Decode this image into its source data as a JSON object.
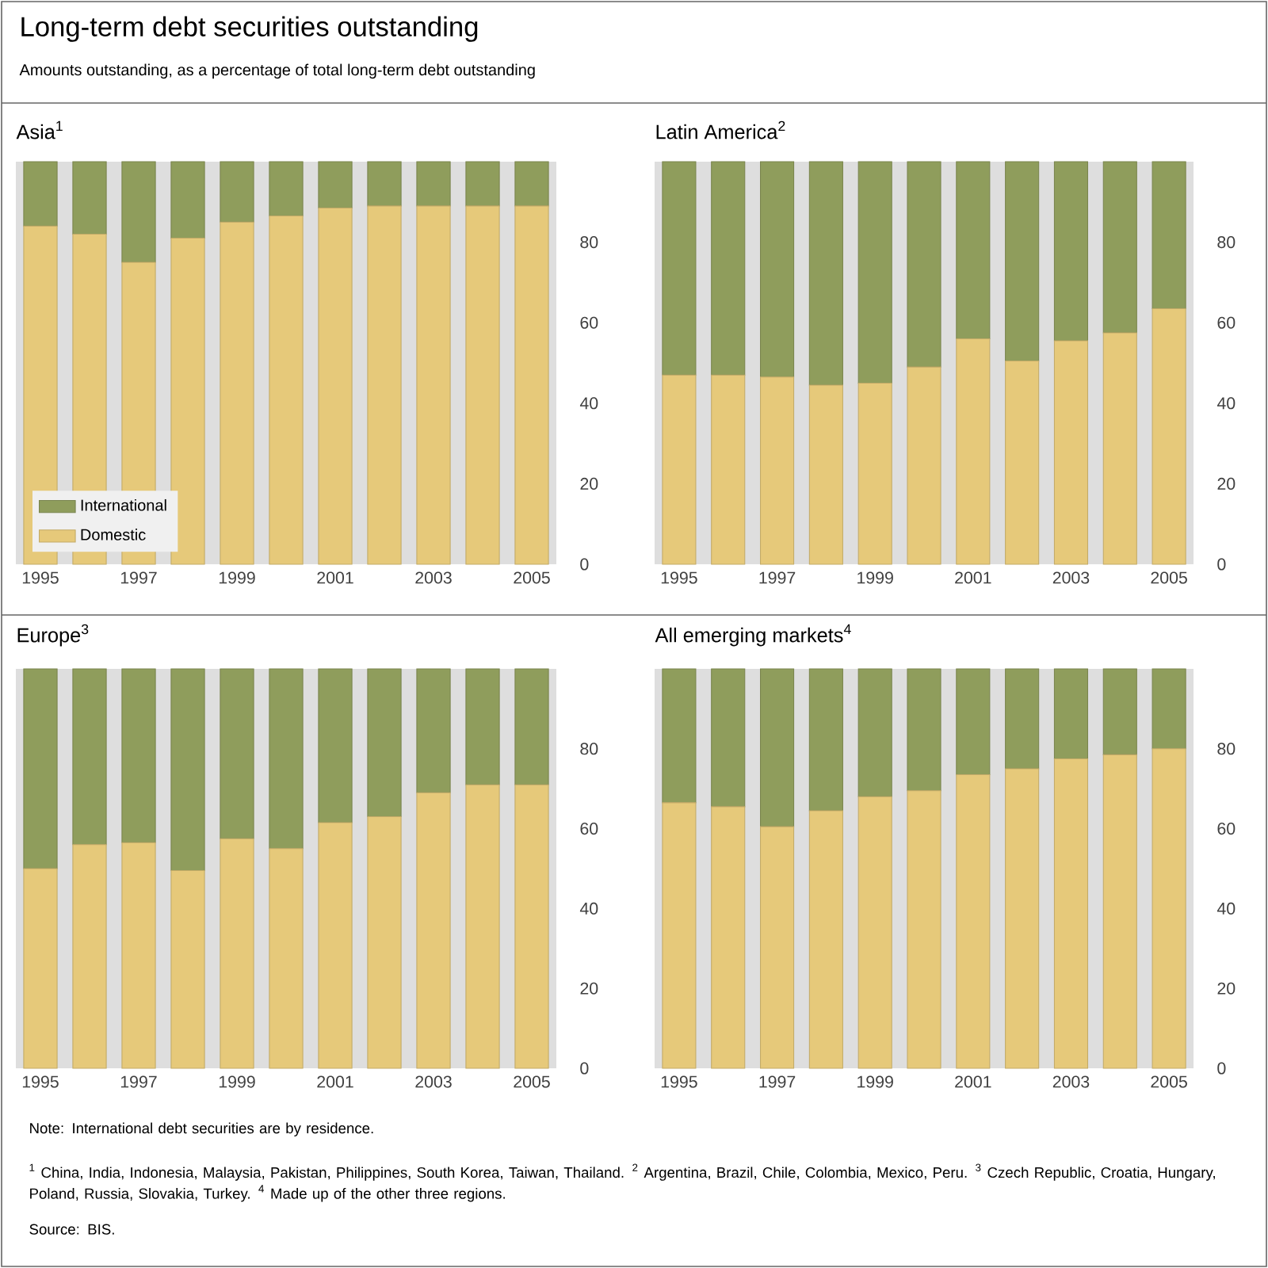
{
  "chart_data": [
    {
      "type": "other",
      "title": "Long-term debt securities outstanding",
      "subtitle": "Amounts outstanding, as a percentage of total long-term debt outstanding"
    },
    {
      "type": "bar",
      "title": "Asia$^{1}$",
      "categories": [
        "1995",
        null,
        "1997",
        null,
        "1999",
        null,
        "2001",
        null,
        "2003",
        null,
        "2005"
      ],
      "stacked": true,
      "ylim": [
        0,
        100
      ],
      "yticks": [
        0,
        20,
        40,
        60,
        80
      ],
      "legend": "bottom left",
      "series": [
        {
          "name": "Domestic",
          "color": "#e6c97a",
          "values": [
            84,
            82,
            75,
            81,
            85,
            86.5,
            88.5,
            89,
            89,
            89,
            89
          ]
        },
        {
          "name": "International",
          "color": "#8f9d5c",
          "values": [
            16,
            18,
            25,
            19,
            15,
            13.5,
            11.5,
            11,
            11,
            11,
            11
          ]
        }
      ]
    },
    {
      "type": "bar",
      "title": "Latin America$^{2}$",
      "categories": [
        "1995",
        null,
        "1997",
        null,
        "1999",
        null,
        "2001",
        null,
        "2003",
        null,
        "2005"
      ],
      "stacked": true,
      "ylim": [
        0,
        100
      ],
      "yticks": [
        0,
        20,
        40,
        60,
        80
      ],
      "series": [
        {
          "color": "#e6c97a",
          "values": [
            47,
            47,
            46.5,
            44.5,
            45,
            49,
            56,
            50.5,
            55.5,
            57.5,
            63.5
          ]
        },
        {
          "color": "#8f9d5c",
          "values": [
            53,
            53,
            53.5,
            55.5,
            55,
            51,
            44,
            49.5,
            44.5,
            42.5,
            36.5
          ]
        }
      ]
    },
    {
      "type": "bar",
      "title": "Europe$^{3}$",
      "categories": [
        "1995",
        null,
        "1997",
        null,
        "1999",
        null,
        "2001",
        null,
        "2003",
        null,
        "2005"
      ],
      "stacked": true,
      "ylim": [
        0,
        100
      ],
      "yticks": [
        0,
        20,
        40,
        60,
        80
      ],
      "series": [
        {
          "color": "#e6c97a",
          "values": [
            50,
            56,
            56.5,
            49.5,
            57.5,
            55,
            61.5,
            63,
            69,
            71,
            71
          ]
        },
        {
          "color": "#8f9d5c",
          "values": [
            50,
            44,
            43.5,
            50.5,
            42.5,
            45,
            38.5,
            37,
            31,
            29,
            29
          ]
        }
      ]
    },
    {
      "type": "bar",
      "title": "All emerging markets$^{4}$",
      "categories": [
        "1995",
        null,
        "1997",
        null,
        "1999",
        null,
        "2001",
        null,
        "2003",
        null,
        "2005"
      ],
      "stacked": true,
      "ylim": [
        0,
        100
      ],
      "yticks": [
        0,
        20,
        40,
        60,
        80
      ],
      "series": [
        {
          "color": "#e6c97a",
          "values": [
            66.5,
            65.5,
            60.5,
            64.5,
            68,
            69.5,
            73.5,
            75,
            77.5,
            78.5,
            80
          ]
        },
        {
          "color": "#8f9d5c",
          "values": [
            33.5,
            34.5,
            39.5,
            35.5,
            32,
            30.5,
            26.5,
            25,
            22.5,
            21.5,
            20
          ]
        }
      ]
    },
    {
      "type": "other",
      "annotations": [
        "Note: International debt securities are by residence.",
        "$^{1}$ China, India, Indonesia, Malaysia, Pakistan, Philippines, South Korea, Taiwan, Thailand.  $^{2}$ Argentina, Brazil, Chile, Colombia, Mexico, Peru.  $^{3}$ Czech Republic, Croatia, Hungary, Poland, Russia, Slovakia, Turkey.  $^{4}$ Made up of the other three regions.",
        "Source: BIS."
      ]
    }
  ]
}
